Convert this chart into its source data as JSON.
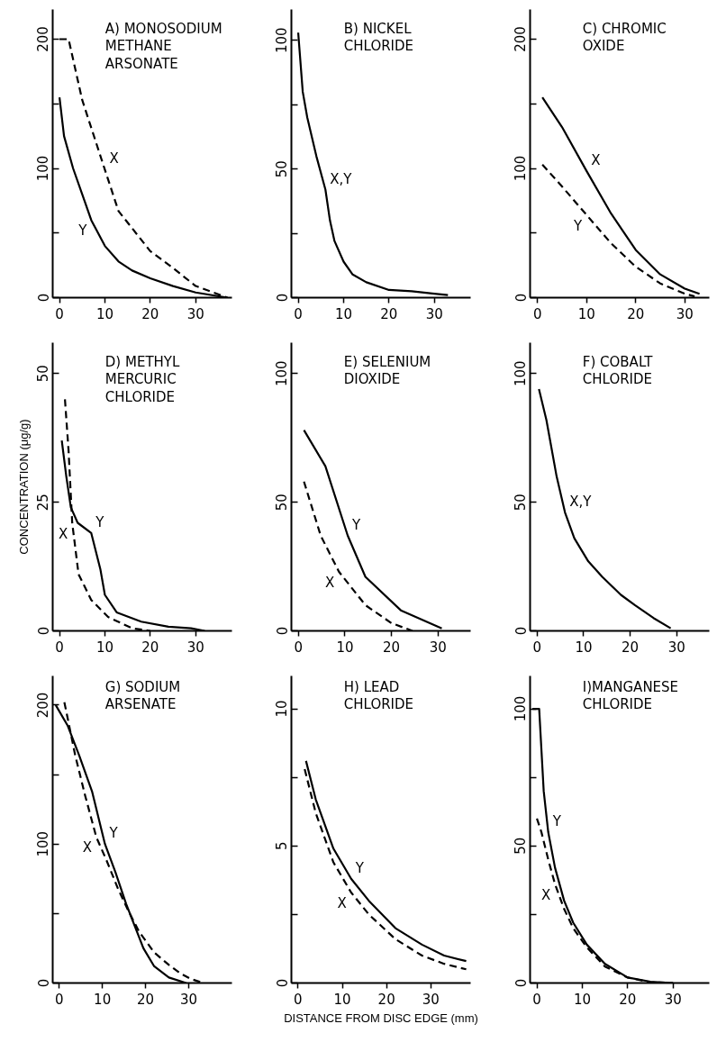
{
  "chart_data": [
    {
      "type": "line",
      "title": "A) MONOSODIUM\nMETHANE\nARSONATE",
      "xlim": [
        -1.5,
        38
      ],
      "ylim": [
        0,
        223
      ],
      "xticks": [
        0,
        10,
        20,
        30
      ],
      "yticks": [
        0,
        {
          "value": 50,
          "label": null
        },
        100,
        {
          "value": 150,
          "label": null
        },
        200
      ],
      "grid": false,
      "marker": "none",
      "series": [
        {
          "name": "X",
          "color": "#000000",
          "line_style": "dashed",
          "x": [
            0,
            2,
            5,
            10,
            13,
            20,
            25,
            30,
            37
          ],
          "values": [
            200,
            200,
            153,
            99,
            67,
            36,
            23,
            9,
            0
          ]
        },
        {
          "name": "Y",
          "color": "#000000",
          "line_style": "solid",
          "x": [
            0,
            1,
            3,
            5,
            7,
            10,
            13,
            16,
            20,
            25,
            30,
            37
          ],
          "values": [
            155,
            125,
            100,
            80,
            60,
            40,
            28,
            21,
            15,
            9,
            4,
            0
          ]
        }
      ]
    },
    {
      "type": "line",
      "title": "B) NICKEL\nCHLORIDE",
      "xlim": [
        -1.5,
        38
      ],
      "ylim": [
        0,
        112
      ],
      "xticks": [
        0,
        10,
        20,
        30
      ],
      "yticks": [
        0,
        {
          "value": 25,
          "label": null
        },
        50,
        {
          "value": 75,
          "label": null
        },
        100
      ],
      "grid": false,
      "marker": "none",
      "series": [
        {
          "name": "X,Y",
          "color": "#000000",
          "line_style": "solid",
          "x": [
            0,
            1,
            2,
            4,
            6,
            7,
            8,
            10,
            12,
            15,
            20,
            25,
            30,
            33
          ],
          "values": [
            103,
            80,
            70,
            55,
            42,
            30,
            22,
            14,
            9,
            6,
            3,
            2.5,
            1.5,
            1
          ]
        }
      ]
    },
    {
      "type": "line",
      "title": "C) CHROMIC\nOXIDE",
      "xlim": [
        -1.5,
        35
      ],
      "ylim": [
        0,
        223
      ],
      "xticks": [
        0,
        10,
        20,
        30
      ],
      "yticks": [
        0,
        {
          "value": 50,
          "label": null
        },
        100,
        {
          "value": 150,
          "label": null
        },
        200
      ],
      "grid": false,
      "marker": "none",
      "series": [
        {
          "name": "X",
          "color": "#000000",
          "line_style": "solid",
          "x": [
            1,
            5,
            10,
            15,
            20,
            25,
            30,
            33
          ],
          "values": [
            155,
            132,
            98,
            65,
            37,
            18,
            7,
            3
          ]
        },
        {
          "name": "Y",
          "color": "#000000",
          "line_style": "dashed",
          "x": [
            1,
            5,
            10,
            15,
            20,
            25,
            30,
            32
          ],
          "values": [
            103,
            86,
            64,
            42,
            24,
            11,
            3,
            1
          ]
        }
      ]
    },
    {
      "type": "line",
      "title": "D) METHYL\nMERCURIC\nCHLORIDE",
      "ylabel": "CONCENTRATION (μg/g)",
      "xlim": [
        -1.5,
        38
      ],
      "ylim": [
        0,
        56
      ],
      "xticks": [
        0,
        10,
        20,
        30
      ],
      "yticks": [
        0,
        25,
        50
      ],
      "grid": false,
      "marker": "none",
      "series": [
        {
          "name": "X",
          "color": "#000000",
          "line_style": "dashed",
          "x": [
            1.2,
            2,
            2.8,
            4.2,
            7,
            10.7,
            16,
            20
          ],
          "values": [
            45,
            35,
            21,
            11,
            6,
            2.7,
            0.5,
            0
          ]
        },
        {
          "name": "Y",
          "color": "#000000",
          "line_style": "solid",
          "x": [
            0.5,
            1.5,
            2.5,
            4,
            7,
            9,
            10,
            12.6,
            18,
            24,
            29,
            32
          ],
          "values": [
            37,
            30,
            24,
            21,
            19,
            12,
            7,
            3.6,
            1.8,
            0.8,
            0.5,
            0
          ]
        }
      ]
    },
    {
      "type": "line",
      "title": "E) SELENIUM\nDIOXIDE",
      "xlim": [
        -1.5,
        37
      ],
      "ylim": [
        0,
        112
      ],
      "xticks": [
        0,
        10,
        20,
        30
      ],
      "yticks": [
        0,
        50,
        100
      ],
      "grid": false,
      "marker": "none",
      "series": [
        {
          "name": "X",
          "color": "#000000",
          "line_style": "dashed",
          "x": [
            1.2,
            4.8,
            8.7,
            14.4,
            20,
            24.5
          ],
          "values": [
            58,
            37,
            23,
            10,
            3,
            0
          ]
        },
        {
          "name": "Y",
          "color": "#000000",
          "line_style": "solid",
          "x": [
            1.2,
            5.8,
            10.6,
            14.4,
            22,
            30.8
          ],
          "values": [
            78,
            64,
            37,
            21,
            8,
            1
          ]
        }
      ]
    },
    {
      "type": "line",
      "title": "F) COBALT\nCHLORIDE",
      "xlim": [
        -1.5,
        37
      ],
      "ylim": [
        0,
        112
      ],
      "xticks": [
        0,
        10,
        20,
        30
      ],
      "yticks": [
        0,
        50,
        100
      ],
      "grid": false,
      "marker": "none",
      "series": [
        {
          "name": "X,Y",
          "color": "#000000",
          "line_style": "solid",
          "x": [
            0.4,
            2,
            4.2,
            6,
            8,
            11,
            14,
            18,
            21,
            25,
            28.7
          ],
          "values": [
            94,
            82,
            60,
            46,
            36,
            27,
            21,
            14,
            10,
            5,
            1
          ]
        }
      ]
    },
    {
      "type": "line",
      "title": "G) SODIUM\nARSENATE",
      "xlim": [
        -1.5,
        40
      ],
      "ylim": [
        0,
        221
      ],
      "xticks": [
        0,
        10,
        20,
        30
      ],
      "yticks": [
        0,
        {
          "value": 50,
          "label": null
        },
        100,
        {
          "value": 150,
          "label": null
        },
        200
      ],
      "grid": false,
      "marker": "none",
      "series": [
        {
          "name": "X",
          "color": "#000000",
          "line_style": "dashed",
          "x": [
            1.2,
            2,
            3.7,
            6,
            8.6,
            11,
            13.6,
            16,
            18.5,
            22,
            25.4,
            28,
            30.4,
            33.4
          ],
          "values": [
            202,
            190,
            164,
            135,
            105,
            88,
            68,
            52,
            37,
            22,
            13,
            7,
            3,
            0
          ]
        },
        {
          "name": "Y",
          "color": "#000000",
          "line_style": "solid",
          "x": [
            -0.8,
            2,
            4.6,
            7.6,
            10.6,
            13,
            15.5,
            17,
            19.5,
            22,
            25.4,
            29.4
          ],
          "values": [
            200,
            185,
            164,
            138,
            100,
            80,
            57,
            45,
            25,
            12,
            4,
            0
          ]
        }
      ]
    },
    {
      "type": "line",
      "title": "H) LEAD\nCHLORIDE",
      "xlabel": "DISTANCE FROM DISC EDGE (mm)",
      "xlim": [
        -1.5,
        39
      ],
      "ylim": [
        0,
        11.2
      ],
      "xticks": [
        0,
        10,
        20,
        30
      ],
      "yticks": [
        0,
        {
          "value": 2.5,
          "label": null
        },
        5,
        {
          "value": 7.5,
          "label": null
        },
        10
      ],
      "grid": false,
      "marker": "none",
      "series": [
        {
          "name": "X",
          "color": "#000000",
          "line_style": "dashed",
          "x": [
            1.5,
            4,
            8,
            12,
            16,
            22,
            28,
            33,
            38
          ],
          "values": [
            7.8,
            6.2,
            4.4,
            3.3,
            2.5,
            1.6,
            1.0,
            0.7,
            0.5
          ]
        },
        {
          "name": "Y",
          "color": "#000000",
          "line_style": "solid",
          "x": [
            1.8,
            4,
            8,
            12,
            16,
            22,
            28,
            33,
            38
          ],
          "values": [
            8.1,
            6.7,
            4.9,
            3.8,
            3.0,
            2.0,
            1.4,
            1.0,
            0.8
          ]
        }
      ]
    },
    {
      "type": "line",
      "title": "I)MANGANESE\nCHLORIDE",
      "xlim": [
        -1.5,
        38
      ],
      "ylim": [
        0,
        112
      ],
      "xticks": [
        0,
        10,
        20,
        30
      ],
      "yticks": [
        0,
        {
          "value": 25,
          "label": null
        },
        50,
        {
          "value": 75,
          "label": null
        },
        100
      ],
      "grid": false,
      "marker": "none",
      "series": [
        {
          "name": "X",
          "color": "#000000",
          "line_style": "dashed",
          "x": [
            0,
            1,
            2.5,
            4,
            6,
            8,
            11,
            15,
            20,
            25,
            30
          ],
          "values": [
            60,
            55,
            45,
            36,
            27,
            20,
            13,
            6,
            2,
            0.3,
            0
          ]
        },
        {
          "name": "Y",
          "color": "#000000",
          "line_style": "solid",
          "x": [
            -1,
            0.5,
            1,
            1.5,
            2.5,
            4,
            6,
            8,
            11,
            15,
            20,
            25,
            30
          ],
          "values": [
            100,
            100,
            85,
            70,
            55,
            42,
            30,
            22,
            14,
            7,
            2,
            0.5,
            0
          ]
        }
      ]
    }
  ]
}
